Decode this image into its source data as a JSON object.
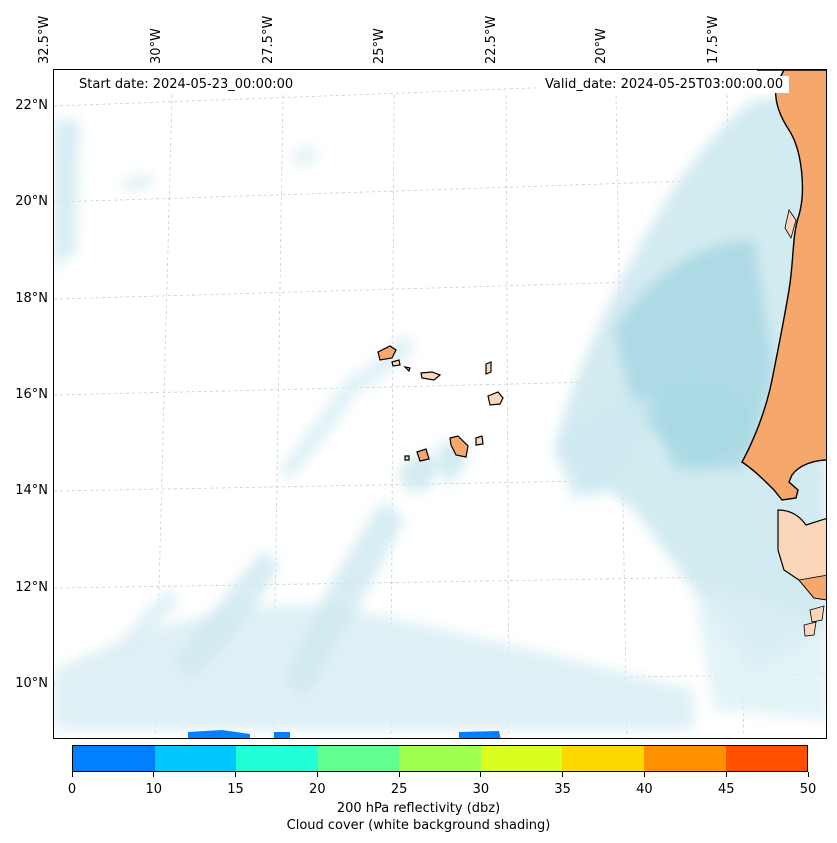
{
  "start_date": "Start date: 2024-05-23_00:00:00",
  "valid_date": "Valid_date: 2024-05-25T03:00:00.00",
  "lon_labels": [
    "32.5°W",
    "30°W",
    "27.5°W",
    "25°W",
    "22.5°W",
    "20°W",
    "17.5°W"
  ],
  "lat_labels": [
    "22°N",
    "20°N",
    "18°N",
    "16°N",
    "14°N",
    "12°N",
    "10°N"
  ],
  "colorbar": {
    "ticks": [
      "0",
      "10",
      "15",
      "20",
      "25",
      "30",
      "35",
      "40",
      "45",
      "50"
    ],
    "colors": [
      "#0080ff",
      "#00c8ff",
      "#20ffd8",
      "#60ff90",
      "#a0ff50",
      "#d8ff20",
      "#ffd800",
      "#ff9000",
      "#ff5000"
    ],
    "label_line1": "200 hPa reflectivity (dbz)",
    "label_line2": "Cloud cover (white background shading)"
  },
  "colors": {
    "cloud": "#a8d8e4",
    "land": "#f6a76c",
    "land_light": "#fad7bb",
    "coast": "#000000",
    "grid": "#cccccc"
  }
}
